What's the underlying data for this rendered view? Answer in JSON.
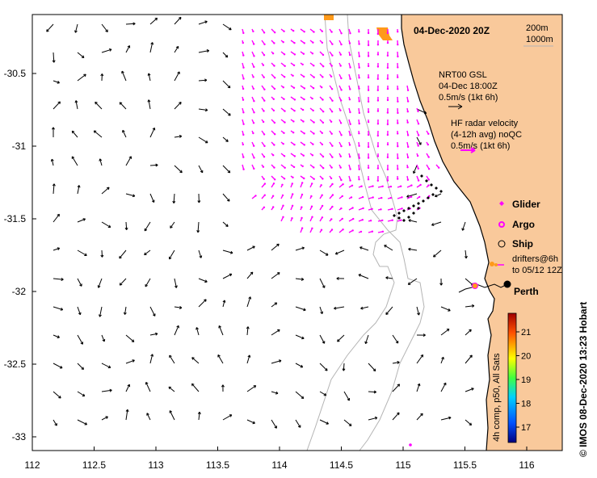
{
  "map": {
    "title": "04-Dec-2020 20Z",
    "contours": [
      "200m",
      "1000m"
    ],
    "city_label": "Perth",
    "credit": "©  IMOS 08-Dec-2020 13:23 Hobart",
    "x_ticks": [
      "112",
      "112.5",
      "113",
      "113.5",
      "114",
      "114.5",
      "115",
      "115.5",
      "116"
    ],
    "y_ticks": [
      "-30.5",
      "-31",
      "-31.5",
      "-32",
      "-32.5",
      "-33"
    ],
    "colors": {
      "land": "#f9c99b",
      "radar": "#ff00ff",
      "coast": "#000000",
      "bathy": "#b4b4b4"
    }
  },
  "legend": {
    "nrt": [
      "NRT00 GSL",
      "04-Dec 18:00Z",
      "0.5m/s (1kt 6h)"
    ],
    "hf": [
      "HF radar velocity",
      "(4-12h avg) noQC",
      "0.5m/s (1kt 6h)"
    ],
    "glider": "Glider",
    "argo": "Argo",
    "ship": "Ship",
    "drifters": [
      "drifters@6h",
      "to 05/12 12Z"
    ]
  },
  "colorbar": {
    "label": "4h comp, p50, All Sats",
    "ticks": [
      "21",
      "20",
      "19",
      "18",
      "17"
    ]
  }
}
